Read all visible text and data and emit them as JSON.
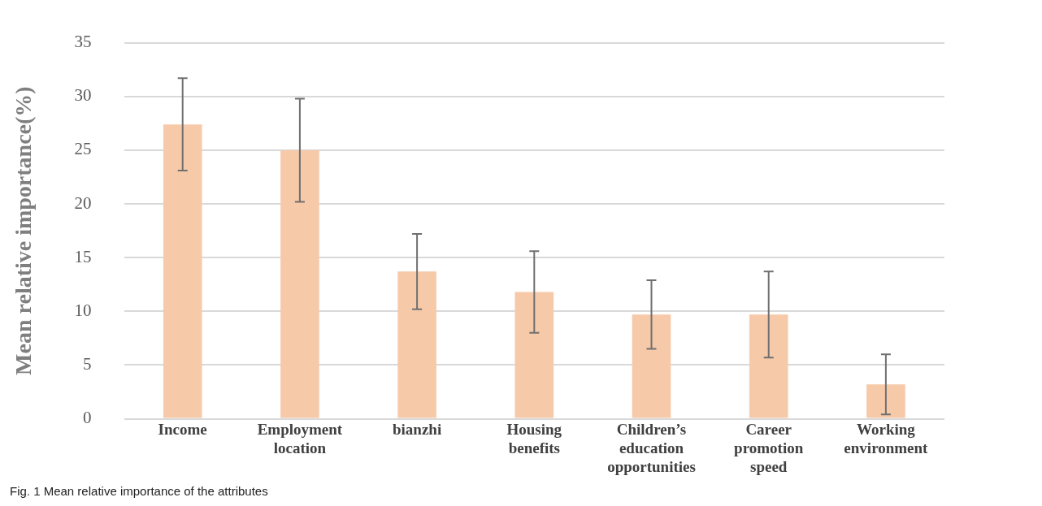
{
  "chart_data": {
    "type": "bar",
    "ylabel": "Mean relative importance(%)",
    "categories": [
      "Income",
      "Employment location",
      "bianzhi",
      "Housing benefits",
      "Children’s education opportunities",
      "Career promotion speed",
      "Working environment"
    ],
    "values": [
      27.4,
      25.0,
      13.7,
      11.8,
      9.7,
      9.7,
      3.2
    ],
    "errors": [
      4.3,
      4.8,
      3.5,
      3.8,
      3.2,
      4.0,
      2.8
    ],
    "color": "#f6c9a9",
    "ylim": [
      0,
      35
    ],
    "yticks": [
      0,
      5,
      10,
      15,
      20,
      25,
      30,
      35
    ],
    "grid": "y",
    "annotations": [
      "Fig. 1  Mean relative importance of the attributes"
    ]
  }
}
